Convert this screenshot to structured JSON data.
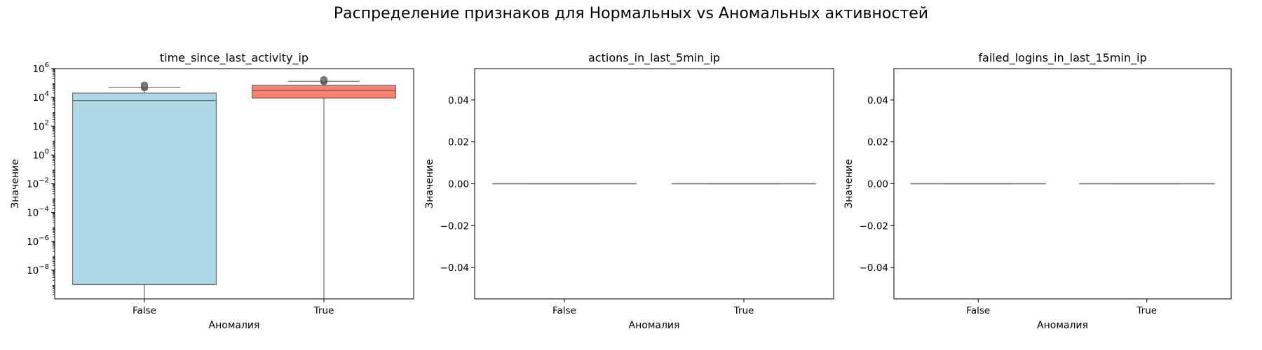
{
  "figure": {
    "title": "Распределение признаков для Нормальных vs Аномальных активностей"
  },
  "chart_data": [
    {
      "type": "box",
      "title": "time_since_last_activity_ip",
      "xlabel": "Аномалия",
      "ylabel": "Значение",
      "yscale": "log",
      "ylim": [
        1e-10,
        1000000.0
      ],
      "categories": [
        "False",
        "True"
      ],
      "yticks": [
        {
          "base": "10",
          "exp": "−8",
          "value": 1e-08
        },
        {
          "base": "10",
          "exp": "−6",
          "value": 1e-06
        },
        {
          "base": "10",
          "exp": "−4",
          "value": 0.0001
        },
        {
          "base": "10",
          "exp": "−2",
          "value": 0.01
        },
        {
          "base": "10",
          "exp": "0",
          "value": 1
        },
        {
          "base": "10",
          "exp": "2",
          "value": 100
        },
        {
          "base": "10",
          "exp": "4",
          "value": 10000
        },
        {
          "base": "10",
          "exp": "6",
          "value": 1000000
        }
      ],
      "boxes": [
        {
          "category": "False",
          "color": "#add8e6",
          "whisker_low": 1e-10,
          "q1": 1e-09,
          "median": 6000,
          "q3": 20000,
          "whisker_high": 50000,
          "outliers": [
            45000,
            55000,
            65000,
            75000
          ]
        },
        {
          "category": "True",
          "color": "#fa8072",
          "whisker_low": 1e-10,
          "q1": 9000,
          "median": 30000,
          "q3": 70000,
          "whisker_high": 130000,
          "outliers": [
            120000,
            140000,
            160000,
            180000
          ]
        }
      ],
      "grid": false
    },
    {
      "type": "box",
      "title": "actions_in_last_5min_ip",
      "xlabel": "Аномалия",
      "ylabel": "Значение",
      "yscale": "linear",
      "ylim": [
        -0.055,
        0.055
      ],
      "categories": [
        "False",
        "True"
      ],
      "yticks": [
        {
          "label": "−0.04",
          "value": -0.04
        },
        {
          "label": "−0.02",
          "value": -0.02
        },
        {
          "label": "0.00",
          "value": 0
        },
        {
          "label": "0.02",
          "value": 0.02
        },
        {
          "label": "0.04",
          "value": 0.04
        }
      ],
      "boxes": [
        {
          "category": "False",
          "color": "#add8e6",
          "whisker_low": 0,
          "q1": 0,
          "median": 0,
          "q3": 0,
          "whisker_high": 0,
          "outliers": []
        },
        {
          "category": "True",
          "color": "#fa8072",
          "whisker_low": 0,
          "q1": 0,
          "median": 0,
          "q3": 0,
          "whisker_high": 0,
          "outliers": []
        }
      ],
      "grid": false
    },
    {
      "type": "box",
      "title": "failed_logins_in_last_15min_ip",
      "xlabel": "Аномалия",
      "ylabel": "Значение",
      "yscale": "linear",
      "ylim": [
        -0.055,
        0.055
      ],
      "categories": [
        "False",
        "True"
      ],
      "yticks": [
        {
          "label": "−0.04",
          "value": -0.04
        },
        {
          "label": "−0.02",
          "value": -0.02
        },
        {
          "label": "0.00",
          "value": 0
        },
        {
          "label": "0.02",
          "value": 0.02
        },
        {
          "label": "0.04",
          "value": 0.04
        }
      ],
      "boxes": [
        {
          "category": "False",
          "color": "#add8e6",
          "whisker_low": 0,
          "q1": 0,
          "median": 0,
          "q3": 0,
          "whisker_high": 0,
          "outliers": []
        },
        {
          "category": "True",
          "color": "#fa8072",
          "whisker_low": 0,
          "q1": 0,
          "median": 0,
          "q3": 0,
          "whisker_high": 0,
          "outliers": []
        }
      ],
      "grid": false
    }
  ]
}
